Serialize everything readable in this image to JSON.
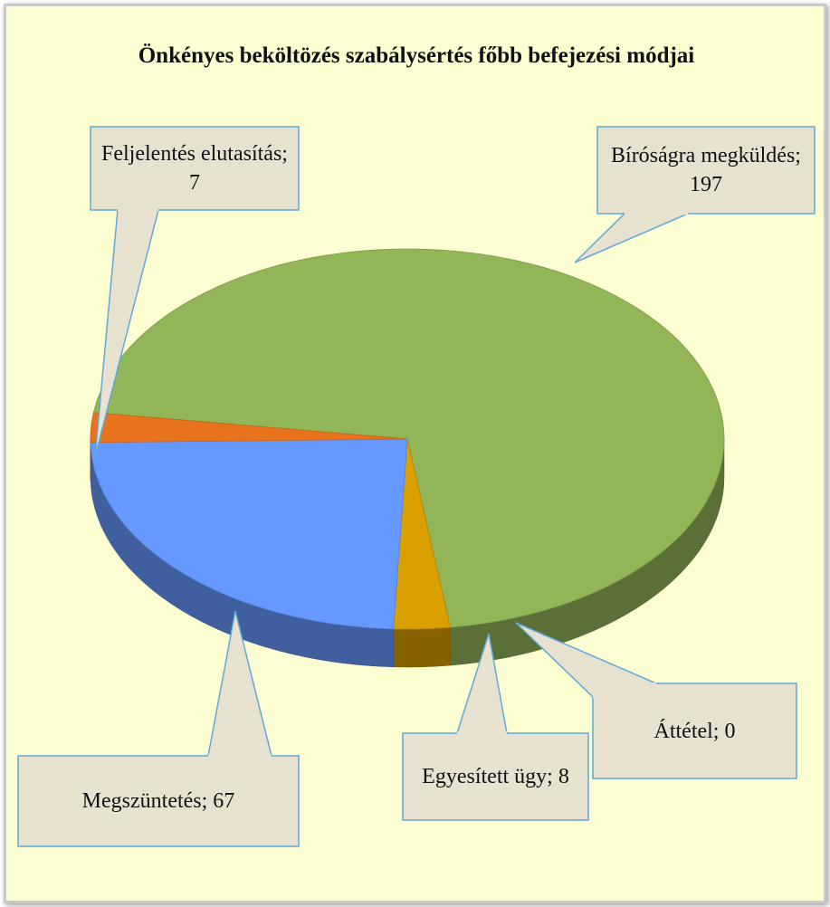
{
  "chart_data": {
    "type": "pie",
    "title": "Önkényes beköltözés szabálysértés főbb befejezési módjai",
    "values": [
      197,
      8,
      0,
      67,
      7
    ],
    "value_labels": [
      "Bíróságra megküldés; 197",
      "Egyesített ügy; 8",
      "Áttétel; 0",
      "Megszüntetés; 67",
      "Feljelentés elutasítás; 7"
    ],
    "colors": [
      "#92b558",
      "#d9a000",
      "#5b8fd8",
      "#6699ff",
      "#e8731c"
    ]
  }
}
